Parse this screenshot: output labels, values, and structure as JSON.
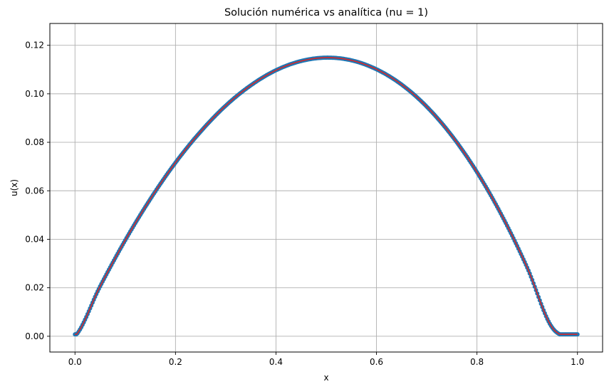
{
  "chart_data": {
    "type": "line",
    "title": "Solución numérica vs analítica (nu = 1)",
    "xlabel": "x",
    "ylabel": "u(x)",
    "xlim": [
      -0.05,
      1.05
    ],
    "ylim": [
      -0.0065,
      0.129
    ],
    "xticks": [
      0.0,
      0.2,
      0.4,
      0.6,
      0.8,
      1.0
    ],
    "xtick_labels": [
      "0.0",
      "0.2",
      "0.4",
      "0.6",
      "0.8",
      "1.0"
    ],
    "yticks": [
      0.0,
      0.02,
      0.04,
      0.06,
      0.08,
      0.1,
      0.12
    ],
    "ytick_labels": [
      "0.00",
      "0.02",
      "0.04",
      "0.06",
      "0.08",
      "0.10",
      "0.12"
    ],
    "grid": true,
    "series": [
      {
        "color": "#1f77b4",
        "style": "markers",
        "x": [
          0.0,
          0.05,
          0.1,
          0.15,
          0.2,
          0.25,
          0.3,
          0.35,
          0.4,
          0.45,
          0.5,
          0.55,
          0.6,
          0.65,
          0.7,
          0.75,
          0.8,
          0.85,
          0.9,
          0.95,
          1.0
        ],
        "y": [
          0.0,
          0.0206,
          0.0396,
          0.0566,
          0.0716,
          0.0844,
          0.0951,
          0.1035,
          0.1097,
          0.1135,
          0.1149,
          0.1138,
          0.1101,
          0.1038,
          0.0947,
          0.0827,
          0.0677,
          0.0496,
          0.0283,
          0.0035,
          0.0
        ]
      },
      {
        "color": "#d62728",
        "style": "line",
        "x": [
          0.0,
          0.05,
          0.1,
          0.15,
          0.2,
          0.25,
          0.3,
          0.35,
          0.4,
          0.45,
          0.5,
          0.55,
          0.6,
          0.65,
          0.7,
          0.75,
          0.8,
          0.85,
          0.9,
          0.95,
          1.0
        ],
        "y": [
          0.0,
          0.0206,
          0.0396,
          0.0566,
          0.0716,
          0.0844,
          0.0951,
          0.1035,
          0.1097,
          0.1135,
          0.1149,
          0.1138,
          0.1101,
          0.1038,
          0.0947,
          0.0827,
          0.0677,
          0.0496,
          0.0283,
          0.0035,
          0.0
        ]
      }
    ]
  }
}
